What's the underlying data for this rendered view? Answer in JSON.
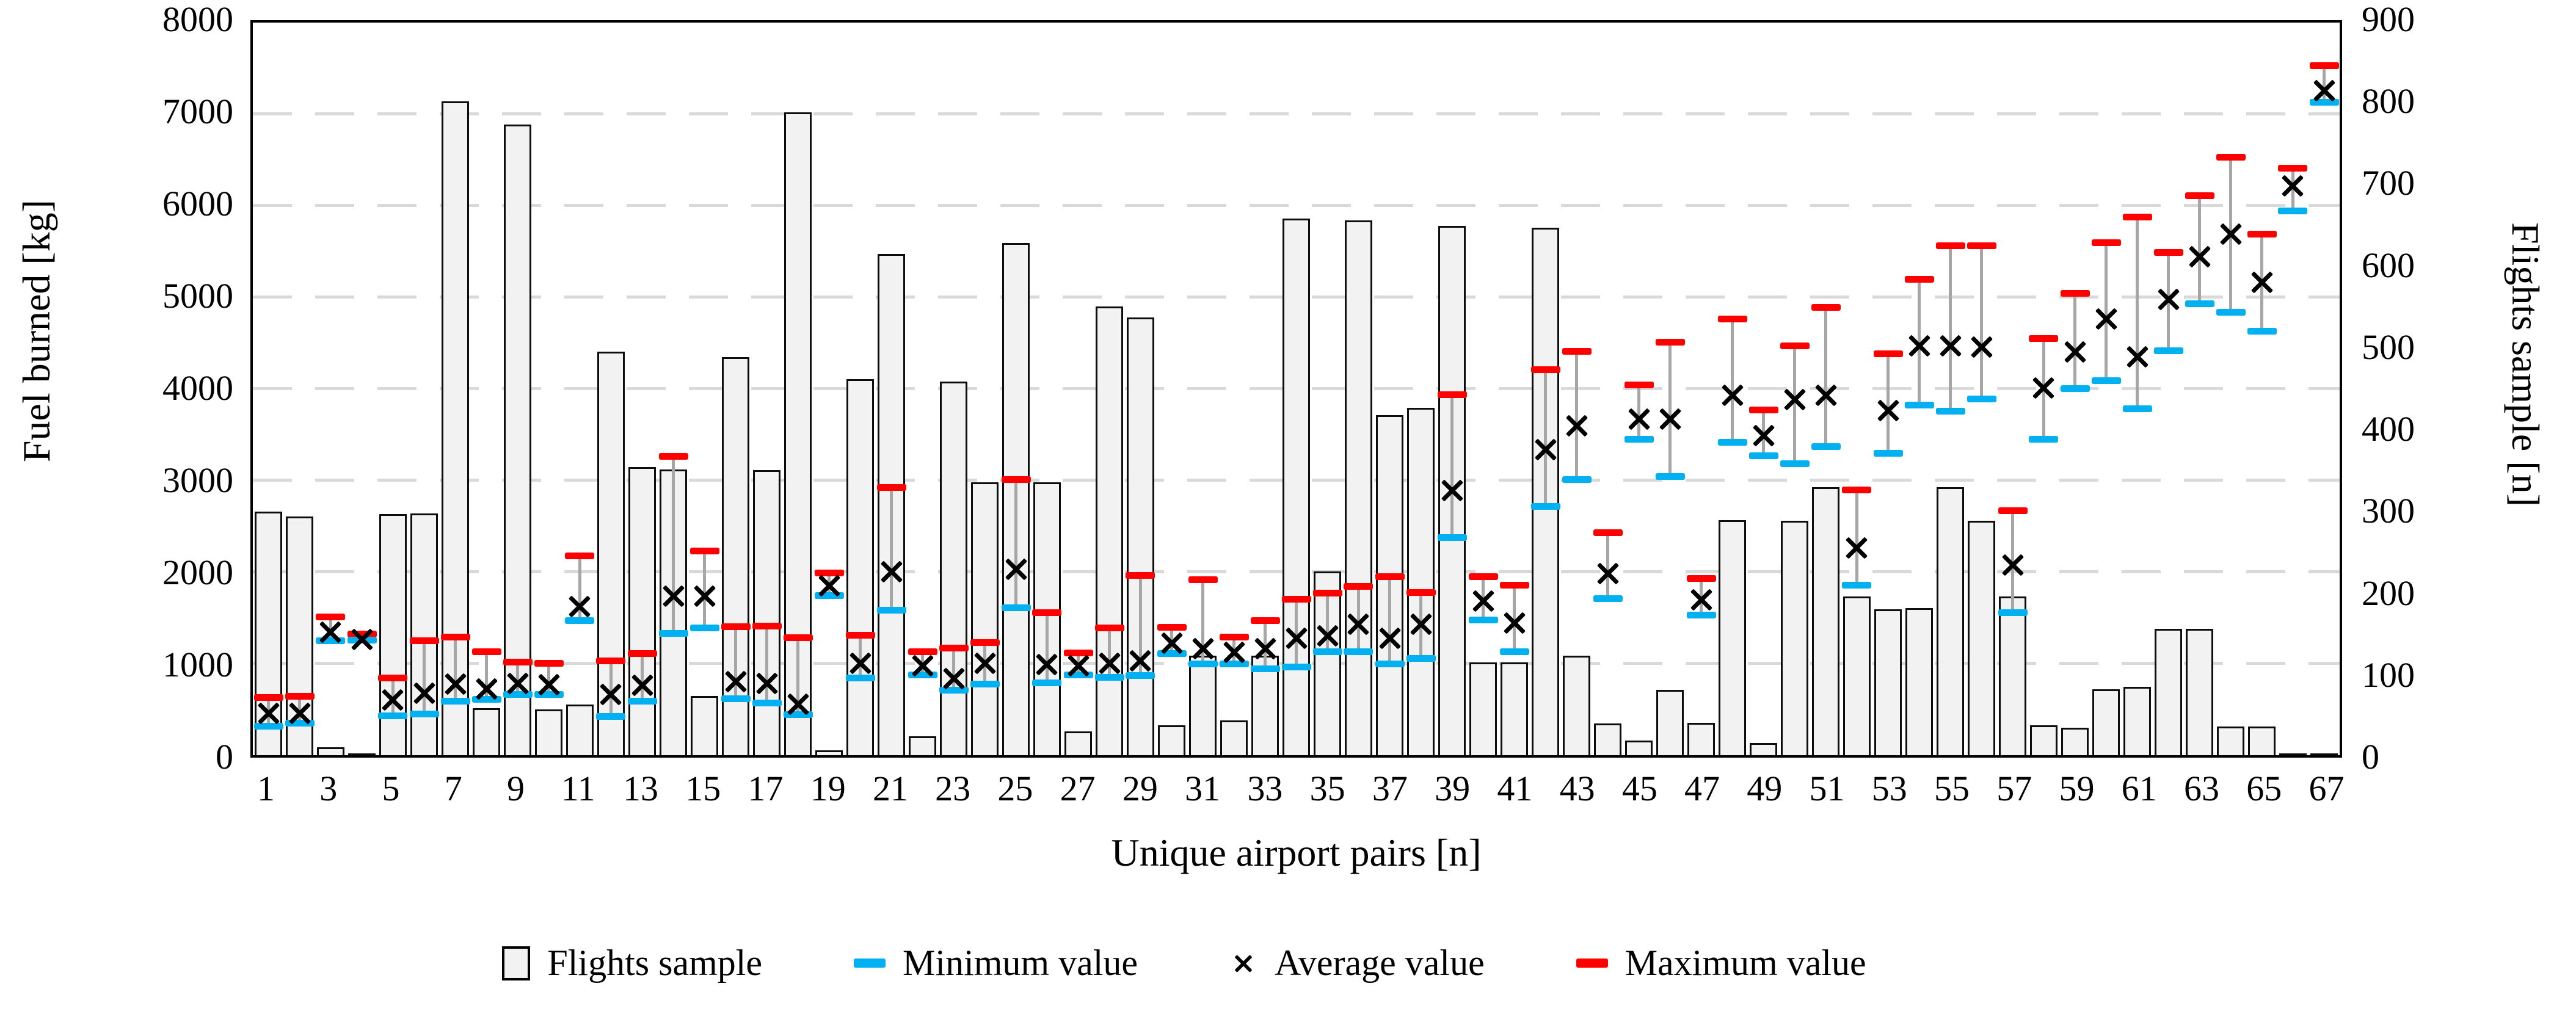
{
  "chart_data": {
    "type": "bar",
    "title": "",
    "xlabel": "Unique airport pairs [n]",
    "ylabel_left": "Fuel burned [kg]",
    "ylabel_right": "Flights sample [n]",
    "left_axis": {
      "min": 0,
      "max": 8000,
      "step": 1000,
      "tick_labels": [
        "0",
        "1000",
        "2000",
        "3000",
        "4000",
        "5000",
        "6000",
        "7000",
        "8000"
      ]
    },
    "right_axis": {
      "min": 0,
      "max": 900,
      "step": 100,
      "tick_labels": [
        "0",
        "100",
        "200",
        "300",
        "400",
        "500",
        "600",
        "700",
        "800",
        "900"
      ]
    },
    "x_axis": {
      "tick_labels": [
        "1",
        "3",
        "5",
        "7",
        "9",
        "11",
        "13",
        "15",
        "17",
        "19",
        "21",
        "23",
        "25",
        "27",
        "29",
        "31",
        "33",
        "35",
        "37",
        "39",
        "41",
        "43",
        "45",
        "47",
        "49",
        "51",
        "53",
        "55",
        "57",
        "59",
        "61",
        "63",
        "65",
        "67"
      ]
    },
    "categories": [
      1,
      2,
      3,
      4,
      5,
      6,
      7,
      8,
      9,
      10,
      11,
      12,
      13,
      14,
      15,
      16,
      17,
      18,
      19,
      20,
      21,
      22,
      23,
      24,
      25,
      26,
      27,
      28,
      29,
      30,
      31,
      32,
      33,
      34,
      35,
      36,
      37,
      38,
      39,
      40,
      41,
      42,
      43,
      44,
      45,
      46,
      47,
      48,
      49,
      50,
      51,
      52,
      53,
      54,
      55,
      56,
      57,
      58,
      59,
      60,
      61,
      62,
      63,
      64,
      65,
      66,
      67
    ],
    "series": [
      {
        "name": "Flights sample",
        "type": "bar",
        "axis": "right",
        "color": "#f2f2f2",
        "values": [
          299,
          293,
          10,
          2,
          296,
          297,
          803,
          58,
          775,
          56,
          62,
          496,
          354,
          351,
          73,
          489,
          350,
          790,
          6,
          462,
          616,
          23,
          459,
          335,
          629,
          335,
          29,
          551,
          538,
          37,
          122,
          43,
          122,
          659,
          226,
          657,
          418,
          427,
          650,
          114,
          114,
          648,
          122,
          39,
          18,
          80,
          40,
          289,
          15,
          288,
          329,
          195,
          179,
          181,
          329,
          288,
          195,
          37,
          34,
          81,
          84,
          155,
          155,
          35,
          35,
          2,
          2
        ]
      },
      {
        "name": "Minimum value",
        "type": "dash",
        "axis": "left",
        "color": "#00b0f0",
        "values": [
          315,
          345,
          1245,
          1255,
          430,
          450,
          590,
          610,
          660,
          660,
          1465,
          420,
          590,
          1330,
          1390,
          615,
          570,
          440,
          1740,
          840,
          1580,
          875,
          710,
          775,
          1610,
          785,
          875,
          850,
          865,
          1110,
          995,
          995,
          940,
          960,
          1125,
          1125,
          995,
          1055,
          2375,
          1475,
          1125,
          2715,
          3010,
          1710,
          3445,
          3040,
          1525,
          3415,
          3270,
          3180,
          3365,
          1855,
          3295,
          3820,
          3755,
          3885,
          1555,
          3445,
          4000,
          4085,
          3780,
          4415,
          4925,
          4835,
          4630,
          5940,
          7125
        ]
      },
      {
        "name": "Average value",
        "type": "x",
        "axis": "left",
        "color": "#000000",
        "values": [
          460,
          460,
          1345,
          1270,
          610,
          680,
          780,
          730,
          790,
          775,
          1630,
          670,
          765,
          1740,
          1740,
          810,
          785,
          560,
          1855,
          1010,
          2010,
          980,
          840,
          1010,
          2035,
          995,
          980,
          1010,
          1035,
          1230,
          1165,
          1125,
          1170,
          1280,
          1305,
          1435,
          1280,
          1435,
          2895,
          1685,
          1450,
          3340,
          3600,
          1985,
          3675,
          3675,
          1700,
          3935,
          3495,
          3885,
          3935,
          2270,
          3765,
          4475,
          4475,
          4460,
          2080,
          4015,
          4405,
          4770,
          4355,
          4980,
          5445,
          5695,
          5170,
          6220,
          7260
        ]
      },
      {
        "name": "Maximum value",
        "type": "dash",
        "axis": "left",
        "color": "#ff0000",
        "values": [
          630,
          640,
          1505,
          1320,
          840,
          1250,
          1285,
          1130,
          1015,
          1000,
          2175,
          1030,
          1105,
          3260,
          2230,
          1400,
          1410,
          1280,
          1985,
          1310,
          2920,
          1125,
          1165,
          1230,
          3010,
          1555,
          1115,
          1385,
          1960,
          1395,
          1915,
          1290,
          1465,
          1700,
          1765,
          1840,
          1950,
          1775,
          3935,
          1950,
          1855,
          4210,
          4405,
          2425,
          4040,
          4510,
          1930,
          4760,
          3770,
          4470,
          4885,
          2895,
          4380,
          5195,
          5560,
          5560,
          2670,
          4550,
          5040,
          5595,
          5875,
          5490,
          6110,
          6525,
          5690,
          6410,
          7530
        ]
      }
    ],
    "grid": "horizontal-dashed",
    "legend_position": "bottom"
  },
  "colors": {
    "bar_fill": "#f2f2f2",
    "bar_border": "#0d0d0d",
    "min": "#00b0f0",
    "max": "#ff0000",
    "average": "#000000",
    "gridline": "#d9d9d9",
    "error_line": "#a6a6a6"
  }
}
